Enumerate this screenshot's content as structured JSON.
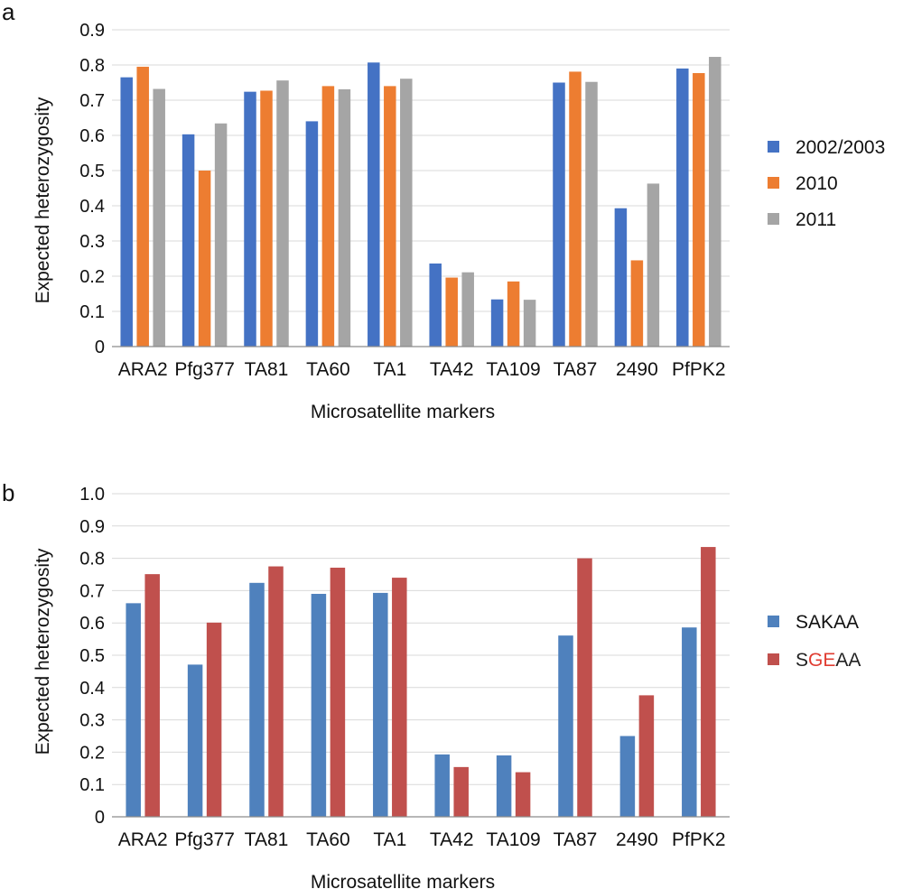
{
  "chart_data": [
    {
      "panel_label": "a",
      "type": "bar",
      "categories": [
        "ARA2",
        "Pfg377",
        "TA81",
        "TA60",
        "TA1",
        "TA42",
        "TA109",
        "TA87",
        "2490",
        "PfPK2"
      ],
      "series": [
        {
          "name": "2002/2003",
          "color": "#4472c4",
          "values": [
            0.765,
            0.603,
            0.724,
            0.64,
            0.807,
            0.236,
            0.134,
            0.75,
            0.393,
            0.79
          ]
        },
        {
          "name": "2010",
          "color": "#ed7d31",
          "values": [
            0.795,
            0.5,
            0.727,
            0.74,
            0.74,
            0.196,
            0.185,
            0.781,
            0.245,
            0.777
          ]
        },
        {
          "name": "2011",
          "color": "#a5a5a5",
          "values": [
            0.732,
            0.634,
            0.756,
            0.731,
            0.761,
            0.211,
            0.133,
            0.752,
            0.463,
            0.823
          ]
        }
      ],
      "yticks": [
        "0",
        "0.1",
        "0.2",
        "0.3",
        "0.4",
        "0.5",
        "0.6",
        "0.7",
        "0.8",
        "0.9"
      ],
      "ylim": [
        0,
        0.9
      ],
      "xlabel": "Microsatellite markers",
      "ylabel": "Expected heterozygosity",
      "grid": true,
      "legend_position": "right"
    },
    {
      "panel_label": "b",
      "type": "bar",
      "categories": [
        "ARA2",
        "Pfg377",
        "TA81",
        "TA60",
        "TA1",
        "TA42",
        "TA109",
        "TA87",
        "2490",
        "PfPK2"
      ],
      "series": [
        {
          "name": "SAKAA",
          "color": "#4f81bd",
          "values": [
            0.661,
            0.471,
            0.724,
            0.69,
            0.693,
            0.193,
            0.19,
            0.561,
            0.25,
            0.586
          ]
        },
        {
          "name": "SGEAA",
          "color": "#c0504d",
          "values": [
            0.751,
            0.601,
            0.775,
            0.771,
            0.74,
            0.154,
            0.138,
            0.8,
            0.376,
            0.835
          ]
        }
      ],
      "legend_label_parts": {
        "SGEAA": [
          {
            "text": "S",
            "color": "#222222"
          },
          {
            "text": "GE",
            "color": "#e03c31"
          },
          {
            "text": "AA",
            "color": "#222222"
          }
        ]
      },
      "yticks": [
        "0",
        "0.1",
        "0.2",
        "0.3",
        "0.4",
        "0.5",
        "0.6",
        "0.7",
        "0.8",
        "0.9",
        "1.0"
      ],
      "ylim": [
        0,
        1.0
      ],
      "xlabel": "Microsatellite markers",
      "ylabel": "Expected heterozygosity",
      "grid": true,
      "legend_position": "right"
    }
  ]
}
